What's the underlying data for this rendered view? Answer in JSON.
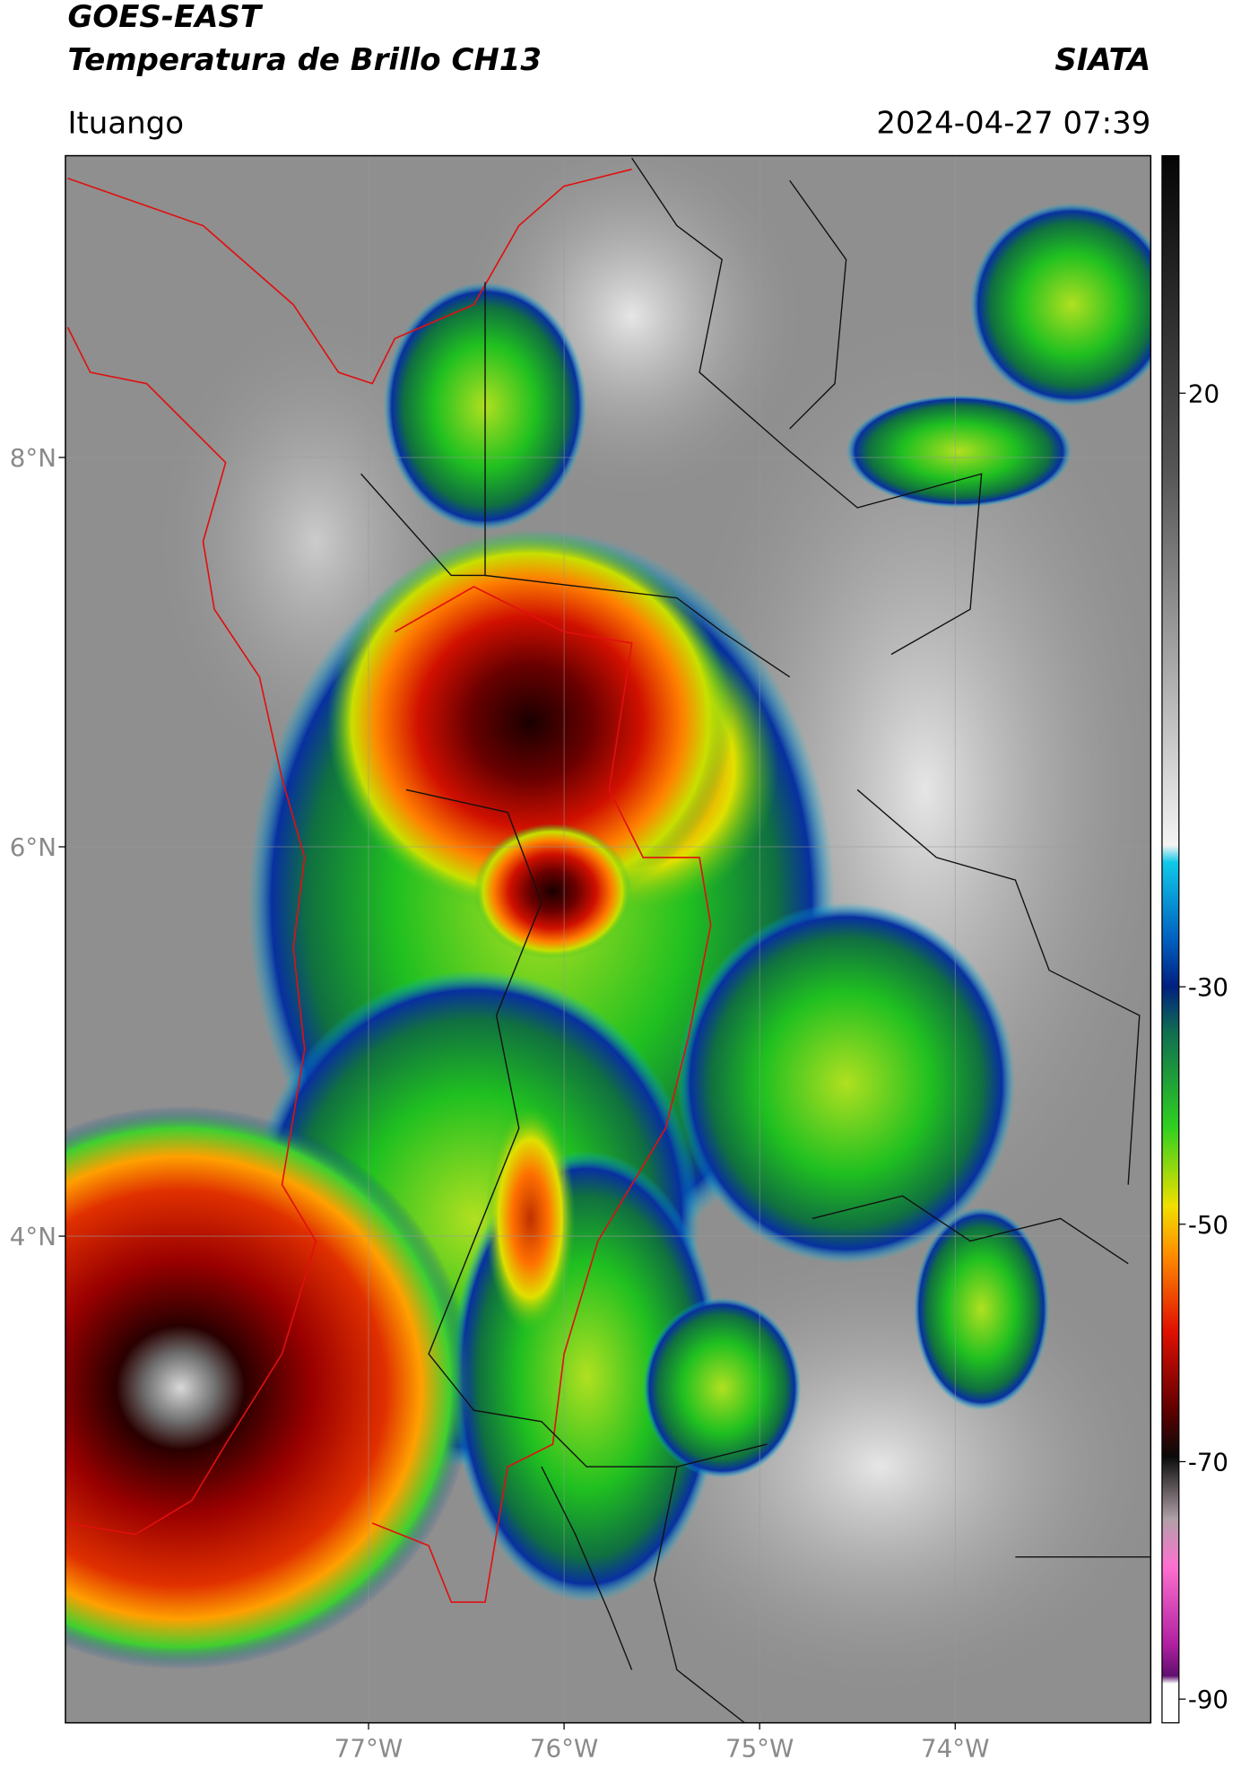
{
  "header": {
    "title": "GOES-EAST",
    "subtitle": "Temperatura de Brillo CH13",
    "brand": "SIATA",
    "location": "Ituango",
    "timestamp": "2024-04-27 07:39"
  },
  "map": {
    "xlim": [
      -78.55,
      -73.0
    ],
    "ylim": [
      1.5,
      9.55
    ],
    "xticks": [
      {
        "value": -77,
        "label": "77°W"
      },
      {
        "value": -76,
        "label": "76°W"
      },
      {
        "value": -75,
        "label": "75°W"
      },
      {
        "value": -74,
        "label": "74°W"
      }
    ],
    "yticks": [
      {
        "value": 8,
        "label": "8°N"
      },
      {
        "value": 6,
        "label": "6°N"
      },
      {
        "value": 4,
        "label": "4°N"
      }
    ],
    "grid": true
  },
  "colorbar": {
    "lim": [
      -92,
      40
    ],
    "ticks": [
      20,
      -30,
      -50,
      -70,
      -90
    ]
  }
}
